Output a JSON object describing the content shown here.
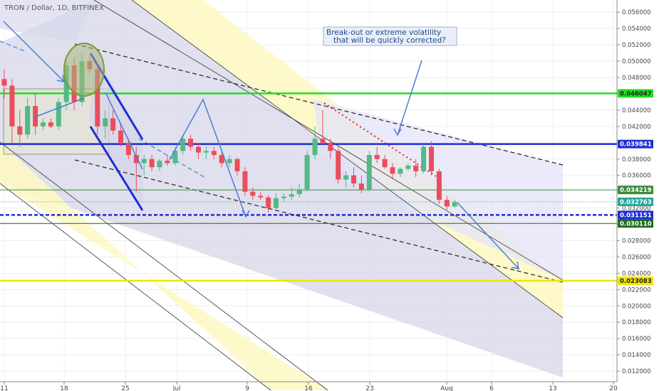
{
  "header": {
    "title": "TRON / Dollar, 1D, BITFINEX"
  },
  "annotation": {
    "line1": "Break-out or extreme volatility",
    "line2": "that will be quickly corrected?"
  },
  "chart_data": {
    "type": "candlestick",
    "symbol": "TRON / Dollar",
    "interval": "1D",
    "exchange": "BITFINEX",
    "ylim": [
      0.0107,
      0.0575
    ],
    "y_ticks": [
      "0.056000",
      "0.054000",
      "0.052000",
      "0.050000",
      "0.048000",
      "0.046000",
      "0.044000",
      "0.042000",
      "0.040000",
      "0.038000",
      "0.036000",
      "0.034000",
      "0.032000",
      "0.030000",
      "0.028000",
      "0.026000",
      "0.024000",
      "0.022000",
      "0.020000",
      "0.018000",
      "0.016000",
      "0.014000",
      "0.012000"
    ],
    "x_ticks": [
      "11",
      "18",
      "25",
      "Jul",
      "9",
      "16",
      "23",
      "Aug",
      "6",
      "13",
      "20"
    ],
    "levels": [
      {
        "value": 0.046047,
        "label": "0.046047",
        "color": "#22dd22"
      },
      {
        "value": 0.039841,
        "label": "0.039841",
        "color": "#1f2dd6"
      },
      {
        "value": 0.034219,
        "label": "0.034219",
        "color": "#3a8a3a"
      },
      {
        "value": 0.032763,
        "label": "0.032763",
        "color": "#26a69a"
      },
      {
        "value": 0.031151,
        "label": "0.031151",
        "color": "#1f2dd6"
      },
      {
        "value": 0.03011,
        "label": "0.030110",
        "color": "#1e6b1e"
      },
      {
        "value": 0.023083,
        "label": "0.023083",
        "color": "#f2e600"
      }
    ],
    "candles": [
      {
        "o": 0.0478,
        "h": 0.049,
        "l": 0.0455,
        "c": 0.047
      },
      {
        "o": 0.047,
        "h": 0.0478,
        "l": 0.04,
        "c": 0.042
      },
      {
        "o": 0.042,
        "h": 0.044,
        "l": 0.0395,
        "c": 0.041
      },
      {
        "o": 0.041,
        "h": 0.0455,
        "l": 0.0405,
        "c": 0.0445
      },
      {
        "o": 0.0445,
        "h": 0.046,
        "l": 0.041,
        "c": 0.042
      },
      {
        "o": 0.042,
        "h": 0.043,
        "l": 0.0415,
        "c": 0.0425
      },
      {
        "o": 0.0425,
        "h": 0.043,
        "l": 0.0418,
        "c": 0.042
      },
      {
        "o": 0.042,
        "h": 0.0455,
        "l": 0.0415,
        "c": 0.045
      },
      {
        "o": 0.045,
        "h": 0.05,
        "l": 0.044,
        "c": 0.0495
      },
      {
        "o": 0.0495,
        "h": 0.0505,
        "l": 0.044,
        "c": 0.045
      },
      {
        "o": 0.045,
        "h": 0.051,
        "l": 0.0445,
        "c": 0.05
      },
      {
        "o": 0.05,
        "h": 0.0506,
        "l": 0.0485,
        "c": 0.049
      },
      {
        "o": 0.049,
        "h": 0.0495,
        "l": 0.041,
        "c": 0.042
      },
      {
        "o": 0.042,
        "h": 0.044,
        "l": 0.0405,
        "c": 0.043
      },
      {
        "o": 0.043,
        "h": 0.044,
        "l": 0.041,
        "c": 0.0415
      },
      {
        "o": 0.0415,
        "h": 0.0425,
        "l": 0.0395,
        "c": 0.04
      },
      {
        "o": 0.04,
        "h": 0.0405,
        "l": 0.038,
        "c": 0.0385
      },
      {
        "o": 0.0385,
        "h": 0.0395,
        "l": 0.034,
        "c": 0.0375
      },
      {
        "o": 0.0375,
        "h": 0.0385,
        "l": 0.036,
        "c": 0.038
      },
      {
        "o": 0.038,
        "h": 0.0385,
        "l": 0.0365,
        "c": 0.037
      },
      {
        "o": 0.037,
        "h": 0.038,
        "l": 0.0365,
        "c": 0.0378
      },
      {
        "o": 0.0378,
        "h": 0.0385,
        "l": 0.0372,
        "c": 0.0375
      },
      {
        "o": 0.0375,
        "h": 0.0395,
        "l": 0.0372,
        "c": 0.039
      },
      {
        "o": 0.039,
        "h": 0.041,
        "l": 0.0385,
        "c": 0.0405
      },
      {
        "o": 0.0405,
        "h": 0.041,
        "l": 0.039,
        "c": 0.0395
      },
      {
        "o": 0.0395,
        "h": 0.04,
        "l": 0.038,
        "c": 0.0388
      },
      {
        "o": 0.0388,
        "h": 0.0395,
        "l": 0.038,
        "c": 0.039
      },
      {
        "o": 0.039,
        "h": 0.0395,
        "l": 0.038,
        "c": 0.0385
      },
      {
        "o": 0.0385,
        "h": 0.039,
        "l": 0.037,
        "c": 0.0375
      },
      {
        "o": 0.0375,
        "h": 0.0385,
        "l": 0.037,
        "c": 0.038
      },
      {
        "o": 0.038,
        "h": 0.0382,
        "l": 0.036,
        "c": 0.0365
      },
      {
        "o": 0.0365,
        "h": 0.037,
        "l": 0.0335,
        "c": 0.034
      },
      {
        "o": 0.034,
        "h": 0.0345,
        "l": 0.033,
        "c": 0.0335
      },
      {
        "o": 0.0335,
        "h": 0.034,
        "l": 0.033,
        "c": 0.0333
      },
      {
        "o": 0.0333,
        "h": 0.0336,
        "l": 0.0315,
        "c": 0.032
      },
      {
        "o": 0.032,
        "h": 0.0338,
        "l": 0.0318,
        "c": 0.0332
      },
      {
        "o": 0.0332,
        "h": 0.0338,
        "l": 0.0328,
        "c": 0.0334
      },
      {
        "o": 0.0334,
        "h": 0.0345,
        "l": 0.033,
        "c": 0.0337
      },
      {
        "o": 0.0337,
        "h": 0.035,
        "l": 0.0333,
        "c": 0.0343
      },
      {
        "o": 0.0343,
        "h": 0.039,
        "l": 0.034,
        "c": 0.0385
      },
      {
        "o": 0.0385,
        "h": 0.042,
        "l": 0.038,
        "c": 0.0405
      },
      {
        "o": 0.0405,
        "h": 0.044,
        "l": 0.0398,
        "c": 0.04
      },
      {
        "o": 0.04,
        "h": 0.0405,
        "l": 0.038,
        "c": 0.039
      },
      {
        "o": 0.039,
        "h": 0.0395,
        "l": 0.035,
        "c": 0.0355
      },
      {
        "o": 0.0355,
        "h": 0.0365,
        "l": 0.0345,
        "c": 0.036
      },
      {
        "o": 0.036,
        "h": 0.037,
        "l": 0.0345,
        "c": 0.035
      },
      {
        "o": 0.035,
        "h": 0.036,
        "l": 0.0338,
        "c": 0.0342
      },
      {
        "o": 0.0342,
        "h": 0.039,
        "l": 0.034,
        "c": 0.0385
      },
      {
        "o": 0.0385,
        "h": 0.0395,
        "l": 0.0375,
        "c": 0.038
      },
      {
        "o": 0.038,
        "h": 0.0385,
        "l": 0.0368,
        "c": 0.037
      },
      {
        "o": 0.037,
        "h": 0.0375,
        "l": 0.0355,
        "c": 0.0362
      },
      {
        "o": 0.0362,
        "h": 0.037,
        "l": 0.0358,
        "c": 0.0368
      },
      {
        "o": 0.0368,
        "h": 0.0375,
        "l": 0.0365,
        "c": 0.0372
      },
      {
        "o": 0.0372,
        "h": 0.038,
        "l": 0.0358,
        "c": 0.0365
      },
      {
        "o": 0.0365,
        "h": 0.0398,
        "l": 0.0362,
        "c": 0.0395
      },
      {
        "o": 0.0395,
        "h": 0.0402,
        "l": 0.036,
        "c": 0.0365
      },
      {
        "o": 0.0365,
        "h": 0.0368,
        "l": 0.0325,
        "c": 0.033
      },
      {
        "o": 0.033,
        "h": 0.0335,
        "l": 0.0318,
        "c": 0.0322
      },
      {
        "o": 0.0322,
        "h": 0.033,
        "l": 0.032,
        "c": 0.0327
      }
    ]
  }
}
